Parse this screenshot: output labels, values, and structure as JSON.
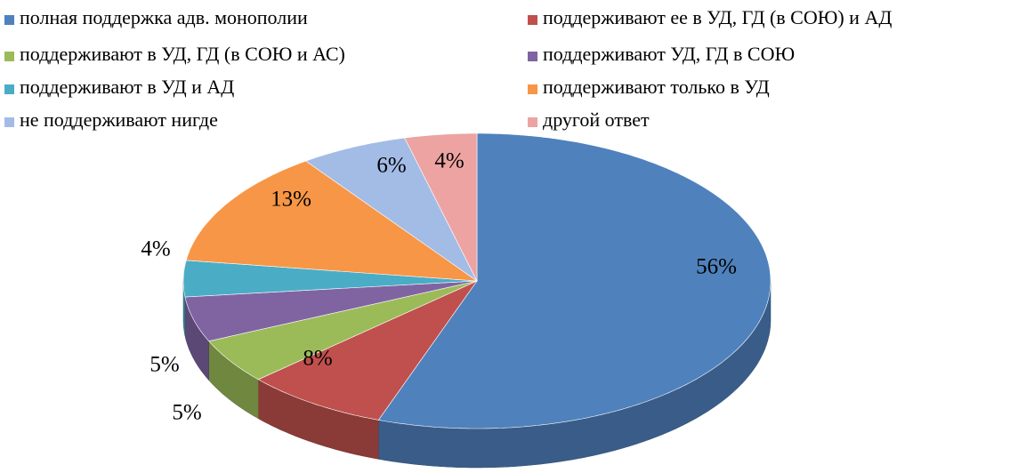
{
  "chart_data": {
    "type": "pie3d",
    "categories": [
      "полная поддержка адв. монополии",
      "поддерживают ее в УД, ГД (в СОЮ) и АД",
      "поддерживают в УД, ГД (в СОЮ и АС)",
      "поддерживают УД, ГД в СОЮ",
      "поддерживают в УД и АД",
      "поддерживают только в УД",
      "не поддерживают нигде",
      "другой ответ"
    ],
    "values": [
      56,
      8,
      5,
      5,
      4,
      13,
      6,
      4
    ],
    "value_labels": [
      "56%",
      "8%",
      "5%",
      "5%",
      "4%",
      "13%",
      "6%",
      "4%"
    ],
    "colors": [
      "#4f81bd",
      "#c0504d",
      "#9bbb59",
      "#8064a2",
      "#4bacc6",
      "#f79646",
      "#a3bce6",
      "#eda3a2"
    ],
    "legend": "top"
  }
}
